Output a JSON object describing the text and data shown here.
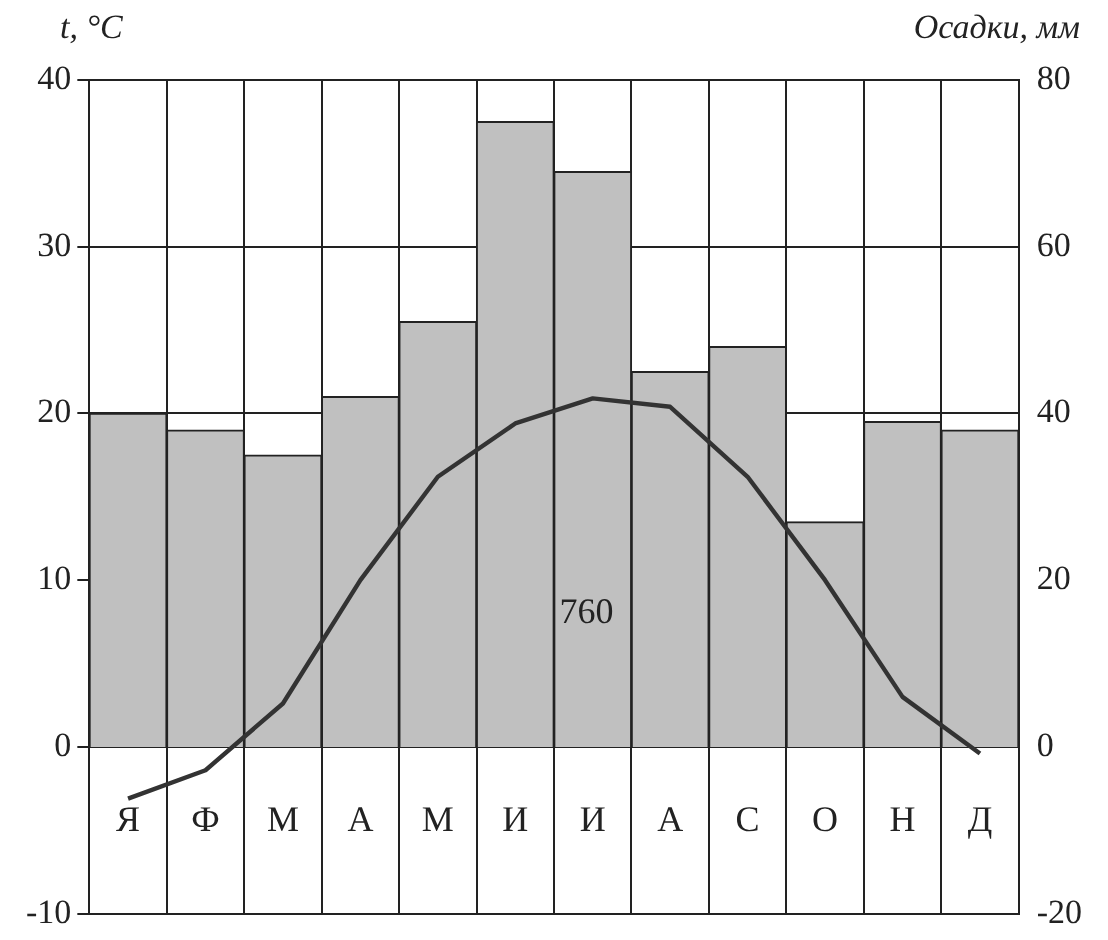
{
  "chart_data": {
    "type": "bar",
    "ylabel": "t, °C",
    "y2label": "Осадки, мм",
    "categories": [
      "Я",
      "Ф",
      "М",
      "А",
      "М",
      "И",
      "И",
      "А",
      "С",
      "О",
      "Н",
      "Д"
    ],
    "series": [
      {
        "axis": "y2",
        "color": "#c0c0c0",
        "values": [
          40,
          38,
          35,
          42,
          51,
          75,
          69,
          45,
          48,
          27,
          39,
          38
        ]
      },
      {
        "type": "line",
        "axis": "y",
        "color": "#333333",
        "values": [
          -3.1,
          -1.4,
          2.6,
          10,
          16.2,
          19.4,
          20.9,
          20.4,
          16.2,
          10,
          3,
          -0.4
        ]
      }
    ],
    "ylim": [
      -10,
      40
    ],
    "yticks": [
      -10,
      0,
      10,
      20,
      30,
      40
    ],
    "y2lim": [
      -20,
      80
    ],
    "y2ticks": [
      -20,
      0,
      20,
      40,
      60,
      80
    ],
    "grid": true,
    "marker": "none",
    "legend": false,
    "annotations": [
      "760"
    ]
  }
}
